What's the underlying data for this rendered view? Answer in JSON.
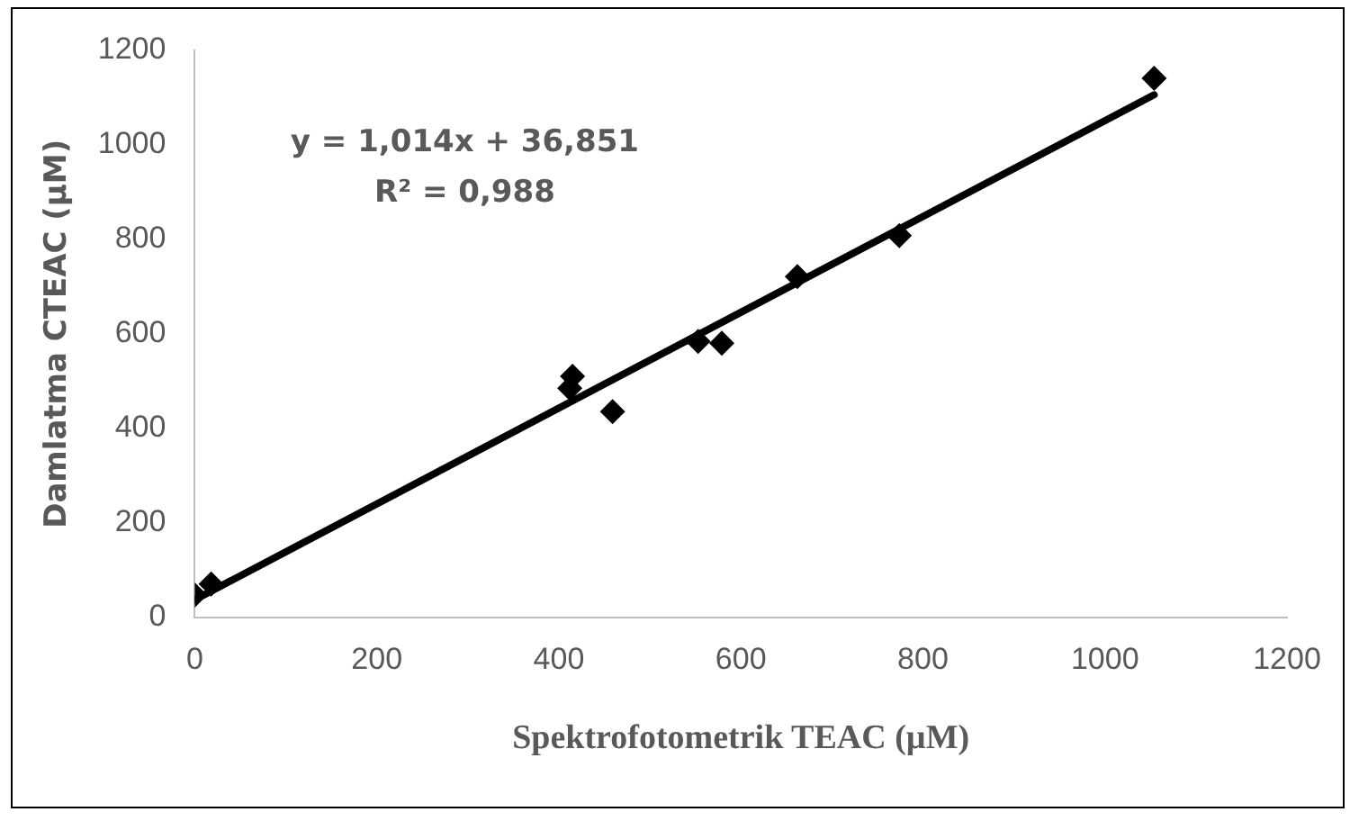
{
  "chart_data": {
    "type": "scatter",
    "xlabel": "Spektrofotometrik TEAC (µM)",
    "ylabel": "Damlatma CTEAC (µM)",
    "marker": "diamond",
    "grid": false,
    "legend": false,
    "xlim": [
      0,
      1200
    ],
    "xticks": [
      0,
      200,
      400,
      600,
      800,
      1000,
      1200
    ],
    "ylim": [
      0,
      1200
    ],
    "yticks": [
      0,
      200,
      400,
      600,
      800,
      1000,
      1200
    ],
    "annotations": [
      "y = 1,014x + 36,851",
      "R² = 0,988"
    ],
    "series": [
      {
        "color": "#000000",
        "x": [
          0,
          18,
          412,
          415,
          459,
          553,
          579,
          662,
          774,
          1054
        ],
        "values": [
          47,
          70,
          485,
          510,
          435,
          584,
          580,
          721,
          808,
          1141
        ]
      },
      {
        "type": "line",
        "marker": "none",
        "color": "#000000",
        "x": [
          0,
          1054
        ],
        "values": [
          37,
          1106
        ]
      }
    ]
  }
}
